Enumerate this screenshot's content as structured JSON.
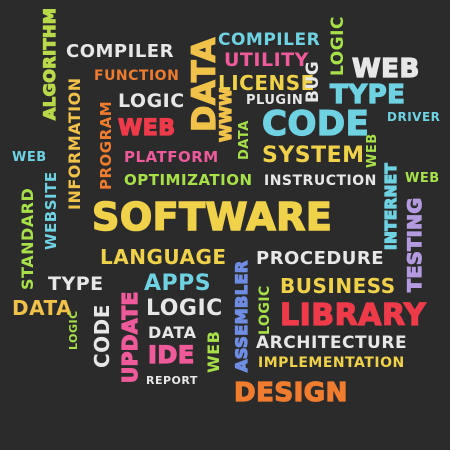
{
  "words": [
    {
      "id": "algorithm",
      "text": "ALGORITHM",
      "color": "#b9d94a"
    },
    {
      "id": "compiler1",
      "text": "COMPILER",
      "color": "#e7e7e7"
    },
    {
      "id": "data1",
      "text": "DATA",
      "color": "#f0c24a"
    },
    {
      "id": "compiler2",
      "text": "COMPILER",
      "color": "#6fd2e3"
    },
    {
      "id": "utility",
      "text": "UTILITY",
      "color": "#ef5a9a"
    },
    {
      "id": "logic1",
      "text": "LOGIC",
      "color": "#a8e04a"
    },
    {
      "id": "web1",
      "text": "WEB",
      "color": "#e7e7e7"
    },
    {
      "id": "function",
      "text": "FUNCTION",
      "color": "#f07c2f"
    },
    {
      "id": "license",
      "text": "LICENSE",
      "color": "#f0d24a"
    },
    {
      "id": "bug",
      "text": "BUG",
      "color": "#e7e7e7"
    },
    {
      "id": "type1",
      "text": "TYPE",
      "color": "#6fd2e3"
    },
    {
      "id": "program",
      "text": "PROGRAM",
      "color": "#f07c2f"
    },
    {
      "id": "logic2",
      "text": "LOGIC",
      "color": "#e7e7e7"
    },
    {
      "id": "www",
      "text": "WWW",
      "color": "#f0c24a"
    },
    {
      "id": "plugin",
      "text": "PLUGIN",
      "color": "#e7e7e7"
    },
    {
      "id": "data2",
      "text": "DATA",
      "color": "#a8e04a"
    },
    {
      "id": "driver",
      "text": "DRIVER",
      "color": "#6fd2e3"
    },
    {
      "id": "web2",
      "text": "WEB",
      "color": "#ef3a4a"
    },
    {
      "id": "code1",
      "text": "CODE",
      "color": "#6fd2e3"
    },
    {
      "id": "information",
      "text": "INFORMATION",
      "color": "#f0c24a"
    },
    {
      "id": "web3",
      "text": "WEB",
      "color": "#6fd2e3"
    },
    {
      "id": "platform",
      "text": "PLATFORM",
      "color": "#ef5a9a"
    },
    {
      "id": "system",
      "text": "SYSTEM",
      "color": "#f0d24a"
    },
    {
      "id": "web4",
      "text": "WEB",
      "color": "#a8e04a"
    },
    {
      "id": "internet",
      "text": "INTERNET",
      "color": "#6fd2e3"
    },
    {
      "id": "website",
      "text": "WEBSITE",
      "color": "#6fd2e3"
    },
    {
      "id": "optimization",
      "text": "OPTIMIZATION",
      "color": "#a8e04a"
    },
    {
      "id": "instruction",
      "text": "INSTRUCTION",
      "color": "#e7e7e7"
    },
    {
      "id": "web5",
      "text": "WEB",
      "color": "#a8e04a"
    },
    {
      "id": "standard",
      "text": "STANDARD",
      "color": "#a8e04a"
    },
    {
      "id": "software",
      "text": "SOFTWARE",
      "color": "#f0d24a"
    },
    {
      "id": "testing",
      "text": "TESTING",
      "color": "#b49be0"
    },
    {
      "id": "language",
      "text": "LANGUAGE",
      "color": "#f0d24a"
    },
    {
      "id": "assembler",
      "text": "ASSEMBLER",
      "color": "#6f8de3"
    },
    {
      "id": "procedure",
      "text": "PROCEDURE",
      "color": "#e7e7e7"
    },
    {
      "id": "type2",
      "text": "TYPE",
      "color": "#e7e7e7"
    },
    {
      "id": "update",
      "text": "UPDATE",
      "color": "#ef5a9a"
    },
    {
      "id": "apps",
      "text": "APPS",
      "color": "#6fd2e3"
    },
    {
      "id": "business",
      "text": "BUSINESS",
      "color": "#f0d24a"
    },
    {
      "id": "data3",
      "text": "DATA",
      "color": "#f0c24a"
    },
    {
      "id": "code2",
      "text": "CODE",
      "color": "#e7e7e7"
    },
    {
      "id": "logic3",
      "text": "LOGIC",
      "color": "#e7e7e7"
    },
    {
      "id": "logic4",
      "text": "LOGIC",
      "color": "#a8e04a"
    },
    {
      "id": "library",
      "text": "LIBRARY",
      "color": "#ef3a4a"
    },
    {
      "id": "logic5",
      "text": "LOGIC",
      "color": "#a8e04a"
    },
    {
      "id": "data4",
      "text": "DATA",
      "color": "#e7e7e7"
    },
    {
      "id": "web6",
      "text": "WEB",
      "color": "#a8e04a"
    },
    {
      "id": "architecture",
      "text": "ARCHITECTURE",
      "color": "#e7e7e7"
    },
    {
      "id": "ide",
      "text": "IDE",
      "color": "#ef5a9a"
    },
    {
      "id": "implementation",
      "text": "IMPLEMENTATION",
      "color": "#f0d24a"
    },
    {
      "id": "report",
      "text": "REPORT",
      "color": "#e7e7e7"
    },
    {
      "id": "design",
      "text": "DESIGN",
      "color": "#f07c2f"
    }
  ]
}
